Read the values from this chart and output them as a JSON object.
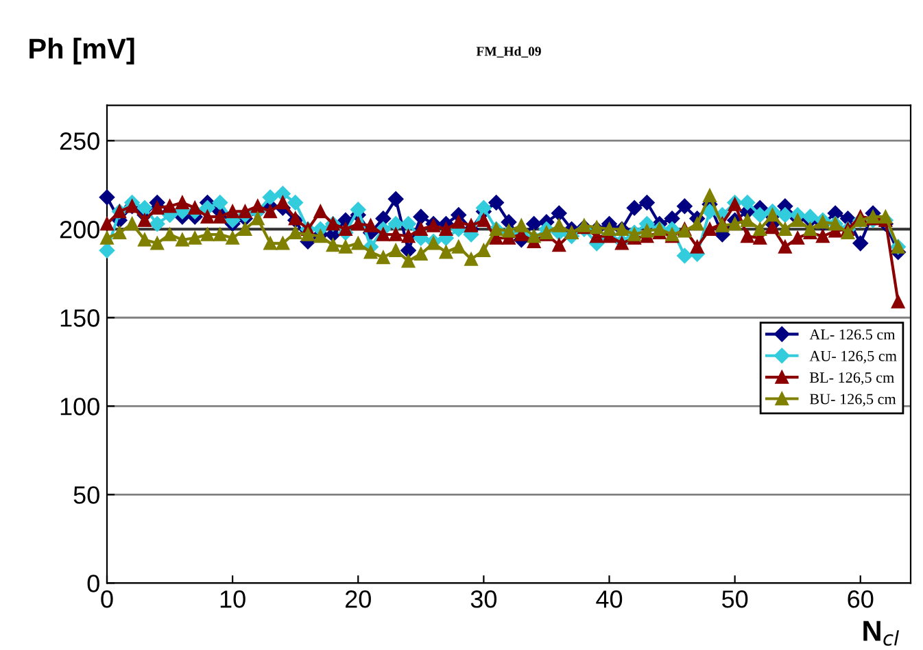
{
  "chart_data": {
    "type": "line",
    "title": "FM_Hd_09",
    "ylabel": "Ph [mV]",
    "xlabel": "N$_{cl}$",
    "x": [
      0,
      1,
      2,
      3,
      4,
      5,
      6,
      7,
      8,
      9,
      10,
      11,
      12,
      13,
      14,
      15,
      16,
      17,
      18,
      19,
      20,
      21,
      22,
      23,
      24,
      25,
      26,
      27,
      28,
      29,
      30,
      31,
      32,
      33,
      34,
      35,
      36,
      37,
      38,
      39,
      40,
      41,
      42,
      43,
      44,
      45,
      46,
      47,
      48,
      49,
      50,
      51,
      52,
      53,
      54,
      55,
      56,
      57,
      58,
      59,
      60,
      61,
      62,
      63
    ],
    "series": [
      {
        "name": "AL- 126.5 cm",
        "color": "#000080",
        "marker": "diamond",
        "values": [
          218,
          205,
          213,
          208,
          215,
          210,
          207,
          207,
          215,
          210,
          203,
          206,
          210,
          213,
          212,
          205,
          193,
          197,
          197,
          205,
          208,
          198,
          206,
          217,
          188,
          207,
          203,
          203,
          208,
          200,
          210,
          215,
          204,
          194,
          203,
          204,
          209,
          200,
          201,
          200,
          203,
          200,
          212,
          215,
          203,
          206,
          213,
          206,
          214,
          197,
          205,
          210,
          212,
          203,
          213,
          206,
          205,
          203,
          209,
          206,
          192,
          209,
          203,
          187
        ]
      },
      {
        "name": "AU- 126,5 cm",
        "color": "#33ccdd",
        "marker": "diamond",
        "values": [
          188,
          210,
          215,
          212,
          203,
          208,
          210,
          210,
          212,
          215,
          205,
          208,
          210,
          218,
          220,
          215,
          200,
          200,
          203,
          198,
          211,
          190,
          200,
          203,
          203,
          195,
          193,
          195,
          200,
          197,
          212,
          200,
          198,
          198,
          195,
          200,
          198,
          196,
          200,
          192,
          197,
          193,
          198,
          203,
          200,
          200,
          185,
          186,
          210,
          208,
          215,
          215,
          208,
          210,
          208,
          208,
          207,
          205,
          203,
          200,
          205,
          205,
          205,
          190
        ]
      },
      {
        "name": "BL- 126,5 cm",
        "color": "#8b0000",
        "marker": "triangle",
        "values": [
          203,
          210,
          213,
          205,
          212,
          213,
          215,
          212,
          207,
          207,
          210,
          210,
          213,
          210,
          215,
          206,
          200,
          210,
          203,
          200,
          203,
          202,
          197,
          197,
          196,
          200,
          202,
          200,
          204,
          202,
          205,
          195,
          195,
          197,
          193,
          197,
          191,
          198,
          201,
          196,
          196,
          192,
          195,
          196,
          198,
          196,
          200,
          190,
          200,
          203,
          214,
          196,
          195,
          201,
          190,
          195,
          198,
          196,
          199,
          200,
          207,
          206,
          205,
          159
        ]
      },
      {
        "name": "BU- 126,5 cm",
        "color": "#808000",
        "marker": "triangle",
        "values": [
          195,
          198,
          203,
          194,
          192,
          197,
          194,
          195,
          197,
          197,
          195,
          200,
          206,
          192,
          192,
          198,
          197,
          196,
          191,
          190,
          192,
          187,
          184,
          188,
          182,
          186,
          192,
          187,
          190,
          183,
          188,
          200,
          199,
          202,
          196,
          198,
          202,
          198,
          202,
          201,
          200,
          200,
          197,
          199,
          200,
          197,
          199,
          203,
          219,
          202,
          203,
          205,
          200,
          208,
          200,
          205,
          200,
          204,
          203,
          198,
          205,
          207,
          207,
          190
        ]
      }
    ],
    "xlim": [
      0,
      64
    ],
    "ylim": [
      0,
      270
    ],
    "xticks": [
      0,
      10,
      20,
      30,
      40,
      50,
      60
    ],
    "yticks": [
      0,
      50,
      100,
      150,
      200,
      250
    ],
    "ref_lines": [
      {
        "axis": "y",
        "value": 200,
        "color": "#333333"
      }
    ],
    "grid": "y",
    "legend": "right",
    "line_style": "solid"
  }
}
